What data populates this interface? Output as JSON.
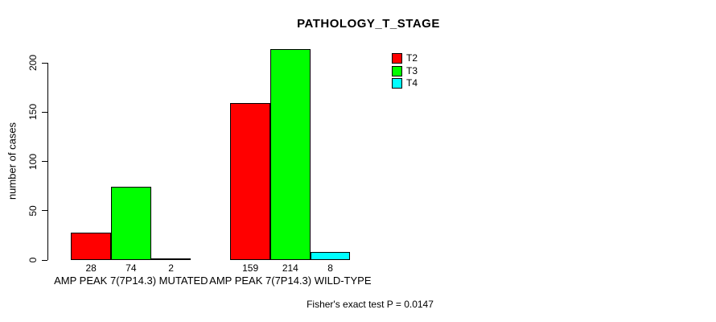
{
  "title": "PATHOLOGY_T_STAGE",
  "footer": "Fisher's exact test P = 0.0147",
  "y_axis": {
    "label": "number of cases",
    "tick_labels": [
      "0",
      "50",
      "100",
      "150",
      "200"
    ]
  },
  "legend": {
    "items": [
      {
        "label": "T2",
        "color": "#ff0000"
      },
      {
        "label": "T3",
        "color": "#00ff00"
      },
      {
        "label": "T4",
        "color": "#00ffff"
      }
    ]
  },
  "chart_data": {
    "type": "bar",
    "title": "PATHOLOGY_T_STAGE",
    "xlabel": "",
    "ylabel": "number of cases",
    "categories": [
      "AMP PEAK 7(7P14.3) MUTATED",
      "AMP PEAK 7(7P14.3) WILD-TYPE"
    ],
    "series": [
      {
        "name": "T2",
        "color": "#ff0000",
        "values": [
          28,
          159
        ]
      },
      {
        "name": "T3",
        "color": "#00ff00",
        "values": [
          74,
          214
        ]
      },
      {
        "name": "T4",
        "color": "#00ffff",
        "values": [
          2,
          8
        ]
      }
    ],
    "yticks": [
      0,
      50,
      100,
      150,
      200
    ],
    "ylim": [
      0,
      200
    ],
    "grid": false,
    "legend_position": "top-right",
    "bar_value_labels_shown": true,
    "annotation": "Fisher's exact test P = 0.0147"
  }
}
